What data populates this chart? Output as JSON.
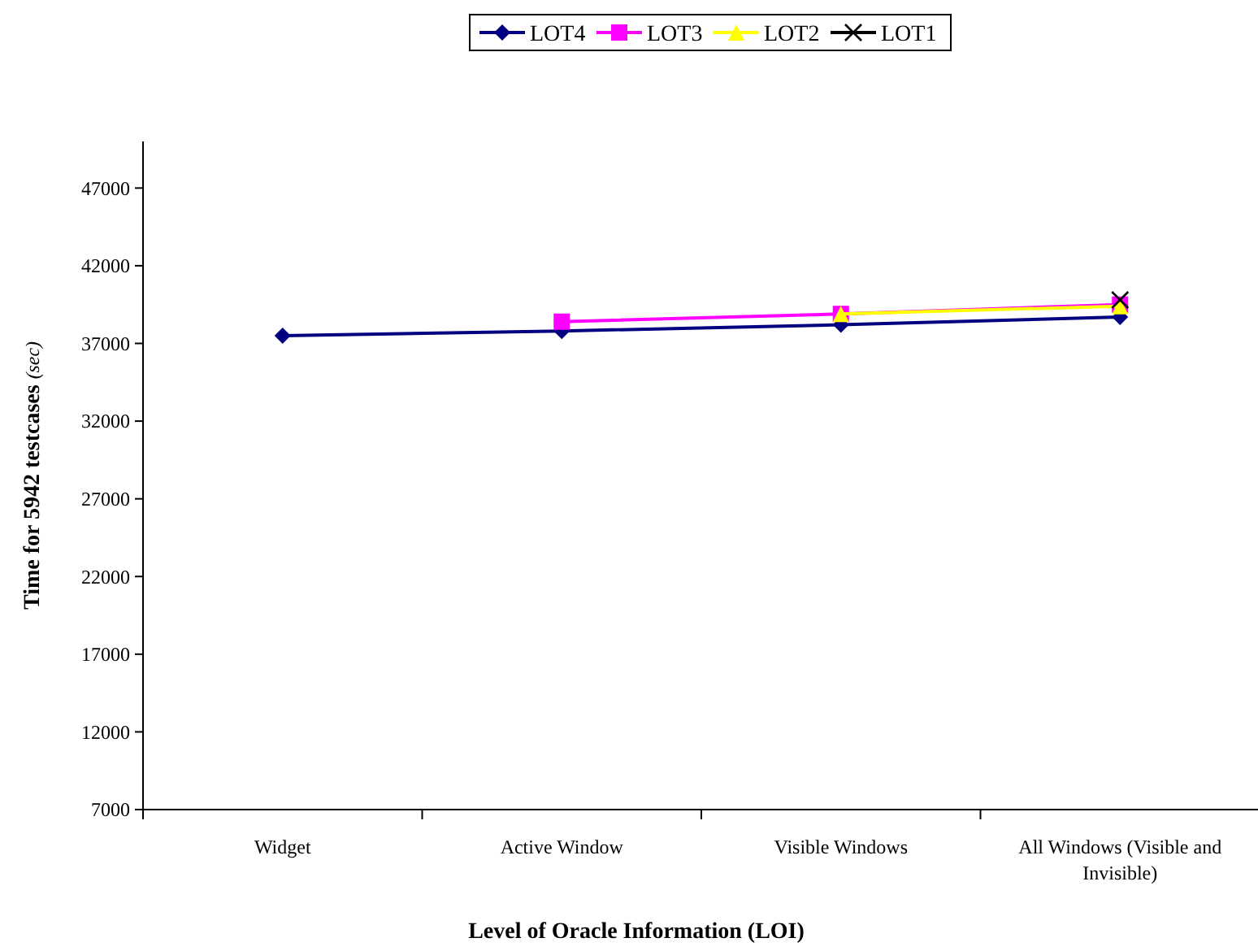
{
  "chart_data": {
    "type": "line",
    "xlabel": "Level of Oracle Information (LOI)",
    "ylabel": "Time for 5942 testcases $_{(sec)}$",
    "categories": [
      "Widget",
      "Active Window",
      "Visible Windows",
      "All Windows (Visible and Invisible)"
    ],
    "series": [
      {
        "name": "LOT4",
        "color": "#000080",
        "marker": "diamond",
        "values": [
          37500,
          37800,
          38200,
          38700
        ]
      },
      {
        "name": "LOT3",
        "color": "#ff00ff",
        "marker": "square",
        "values": [
          null,
          38400,
          38900,
          39500
        ]
      },
      {
        "name": "LOT2",
        "color": "#ffff00",
        "marker": "triangle",
        "values": [
          null,
          null,
          38900,
          39400
        ]
      },
      {
        "name": "LOT1",
        "color": "#000000",
        "marker": "cross",
        "values": [
          null,
          null,
          null,
          39800
        ]
      }
    ],
    "ylim": [
      7000,
      50000
    ],
    "yticks": [
      7000,
      12000,
      17000,
      22000,
      27000,
      32000,
      37000,
      42000,
      47000
    ],
    "grid": false,
    "legend": "top"
  }
}
